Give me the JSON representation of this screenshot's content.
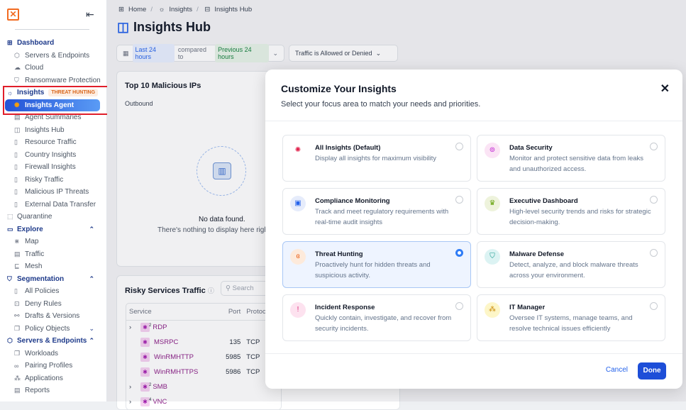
{
  "sidebar": {
    "items": [
      {
        "label": "Dashboard",
        "type": "section",
        "icon": "grid-icon"
      },
      {
        "label": "Servers & Endpoints",
        "icon": "cube-icon"
      },
      {
        "label": "Cloud",
        "icon": "cloud-icon"
      },
      {
        "label": "Ransomware Protection",
        "icon": "shield-icon"
      },
      {
        "label": "Insights",
        "type": "section",
        "icon": "lightbulb-icon",
        "badge": "THREAT HUNTING"
      },
      {
        "label": "Insights Agent",
        "active": true,
        "icon": "agent-icon"
      },
      {
        "label": "Agent Summaries",
        "icon": "summary-icon"
      },
      {
        "label": "Insights Hub",
        "icon": "hub-icon"
      },
      {
        "label": "Resource Traffic",
        "icon": "doc-icon"
      },
      {
        "label": "Country Insights",
        "icon": "doc-icon"
      },
      {
        "label": "Firewall Insights",
        "icon": "doc-icon"
      },
      {
        "label": "Risky Traffic",
        "icon": "doc-icon"
      },
      {
        "label": "Malicious IP Threats",
        "icon": "doc-icon"
      },
      {
        "label": "External Data Transfer",
        "icon": "doc-icon"
      },
      {
        "label": "Quarantine",
        "icon": "quarantine-icon",
        "plain": true
      },
      {
        "label": "Explore",
        "type": "section",
        "icon": "explore-icon",
        "expanded": true
      },
      {
        "label": "Map",
        "icon": "map-icon"
      },
      {
        "label": "Traffic",
        "icon": "table-icon"
      },
      {
        "label": "Mesh",
        "icon": "mesh-icon"
      },
      {
        "label": "Segmentation",
        "type": "section",
        "icon": "shield-icon",
        "expanded": true
      },
      {
        "label": "All Policies",
        "icon": "policy-icon"
      },
      {
        "label": "Deny Rules",
        "icon": "deny-icon"
      },
      {
        "label": "Drafts & Versions",
        "icon": "versions-icon"
      },
      {
        "label": "Policy Objects",
        "icon": "objects-icon",
        "collapsed": true
      },
      {
        "label": "Servers & Endpoints",
        "type": "section",
        "icon": "cube-icon",
        "expanded": true
      },
      {
        "label": "Workloads",
        "icon": "workloads-icon"
      },
      {
        "label": "Pairing Profiles",
        "icon": "link-icon"
      },
      {
        "label": "Applications",
        "icon": "apps-icon"
      },
      {
        "label": "Reports",
        "icon": "report-icon"
      }
    ]
  },
  "breadcrumb": [
    "Home",
    "Insights",
    "Insights Hub"
  ],
  "page_title": "Insights Hub",
  "filters": {
    "range": "Last 24 hours",
    "compared": "compared to",
    "previous": "Previous 24 hours",
    "traffic": "Traffic is Allowed or Denied"
  },
  "malicious": {
    "title": "Top 10 Malicious IPs",
    "tab": "Outbound",
    "empty_title": "No data found.",
    "empty_sub": "There's nothing to display here right"
  },
  "risky": {
    "title": "Risky Services Traffic",
    "search_placeholder": "Search",
    "columns": [
      "Service",
      "Port",
      "Protocol"
    ],
    "rows": [
      {
        "service": "RDP",
        "port": "",
        "protocol": "",
        "count": "2",
        "expandable": true
      },
      {
        "service": "MSRPC",
        "port": "135",
        "protocol": "TCP"
      },
      {
        "service": "WinRMHTTP",
        "port": "5985",
        "protocol": "TCP"
      },
      {
        "service": "WinRMHTTPS",
        "port": "5986",
        "protocol": "TCP"
      },
      {
        "service": "SMB",
        "port": "",
        "protocol": "",
        "count": "2",
        "expandable": true
      },
      {
        "service": "VNC",
        "port": "",
        "protocol": "",
        "count": "4",
        "expandable": true
      }
    ]
  },
  "modal": {
    "title": "Customize Your Insights",
    "subtitle": "Select your focus area to match your needs and priorities.",
    "options": [
      {
        "title": "All Insights (Default)",
        "desc": "Display all insights for maximum visibility",
        "icon": "rainbow-icon",
        "color": "#ffffff",
        "fg": "#e11d48",
        "selected": false
      },
      {
        "title": "Data Security",
        "desc": "Monitor and protect sensitive data from leaks and unauthorized access.",
        "icon": "data-lock-icon",
        "color": "#fbe4f5",
        "fg": "#c026d3",
        "selected": false
      },
      {
        "title": "Compliance Monitoring",
        "desc": "Track and meet regulatory requirements with real-time audit insights",
        "icon": "compliance-icon",
        "color": "#e6ecfb",
        "fg": "#2563eb",
        "selected": false
      },
      {
        "title": "Executive Dashboard",
        "desc": "High-level security trends and risks for strategic decision-making.",
        "icon": "executive-icon",
        "color": "#eef3dc",
        "fg": "#65a30d",
        "selected": false
      },
      {
        "title": "Threat Hunting",
        "desc": "Proactively hunt for hidden threats and suspicious activity.",
        "icon": "binoculars-icon",
        "color": "#fdeadb",
        "fg": "#ea580c",
        "selected": true
      },
      {
        "title": "Malware Defense",
        "desc": "Detect, analyze, and block malware threats across your environment.",
        "icon": "shield-check-icon",
        "color": "#dcf3f3",
        "fg": "#0d9488",
        "selected": false
      },
      {
        "title": "Incident Response",
        "desc": "Quickly contain, investigate, and recover from security incidents.",
        "icon": "alert-icon",
        "color": "#fde2ef",
        "fg": "#db2777",
        "selected": false
      },
      {
        "title": "IT Manager",
        "desc": "Oversee IT systems, manage teams, and resolve technical issues efficiently",
        "icon": "network-icon",
        "color": "#fdf6c8",
        "fg": "#ca8a04",
        "selected": false
      }
    ],
    "cancel": "Cancel",
    "done": "Done"
  }
}
